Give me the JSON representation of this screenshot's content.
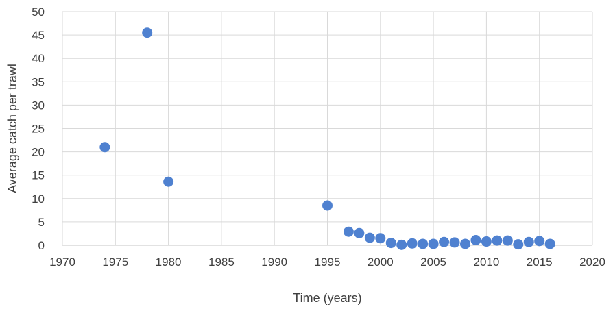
{
  "chart_data": {
    "type": "scatter",
    "title": "",
    "xlabel": "Time (years)",
    "ylabel": "Average catch per trawl",
    "xlim": [
      1970,
      2020
    ],
    "ylim": [
      0,
      50
    ],
    "x_ticks": [
      1970,
      1975,
      1980,
      1985,
      1990,
      1995,
      2000,
      2005,
      2010,
      2015,
      2020
    ],
    "y_ticks": [
      0,
      5,
      10,
      15,
      20,
      25,
      30,
      35,
      40,
      45,
      50
    ],
    "grid": true,
    "legend": "none",
    "marker_color": "#4F81D0",
    "grid_color": "#D9D9D9",
    "points": [
      {
        "x": 1974,
        "y": 21
      },
      {
        "x": 1978,
        "y": 45.5
      },
      {
        "x": 1980,
        "y": 13.6
      },
      {
        "x": 1995,
        "y": 8.5
      },
      {
        "x": 1997,
        "y": 2.9
      },
      {
        "x": 1998,
        "y": 2.6
      },
      {
        "x": 1999,
        "y": 1.6
      },
      {
        "x": 2000,
        "y": 1.5
      },
      {
        "x": 2001,
        "y": 0.5
      },
      {
        "x": 2002,
        "y": 0.1
      },
      {
        "x": 2003,
        "y": 0.4
      },
      {
        "x": 2004,
        "y": 0.3
      },
      {
        "x": 2005,
        "y": 0.3
      },
      {
        "x": 2006,
        "y": 0.7
      },
      {
        "x": 2007,
        "y": 0.6
      },
      {
        "x": 2008,
        "y": 0.3
      },
      {
        "x": 2009,
        "y": 1.1
      },
      {
        "x": 2010,
        "y": 0.8
      },
      {
        "x": 2011,
        "y": 1.0
      },
      {
        "x": 2012,
        "y": 1.0
      },
      {
        "x": 2013,
        "y": 0.2
      },
      {
        "x": 2014,
        "y": 0.7
      },
      {
        "x": 2015,
        "y": 0.9
      },
      {
        "x": 2016,
        "y": 0.3
      }
    ]
  }
}
